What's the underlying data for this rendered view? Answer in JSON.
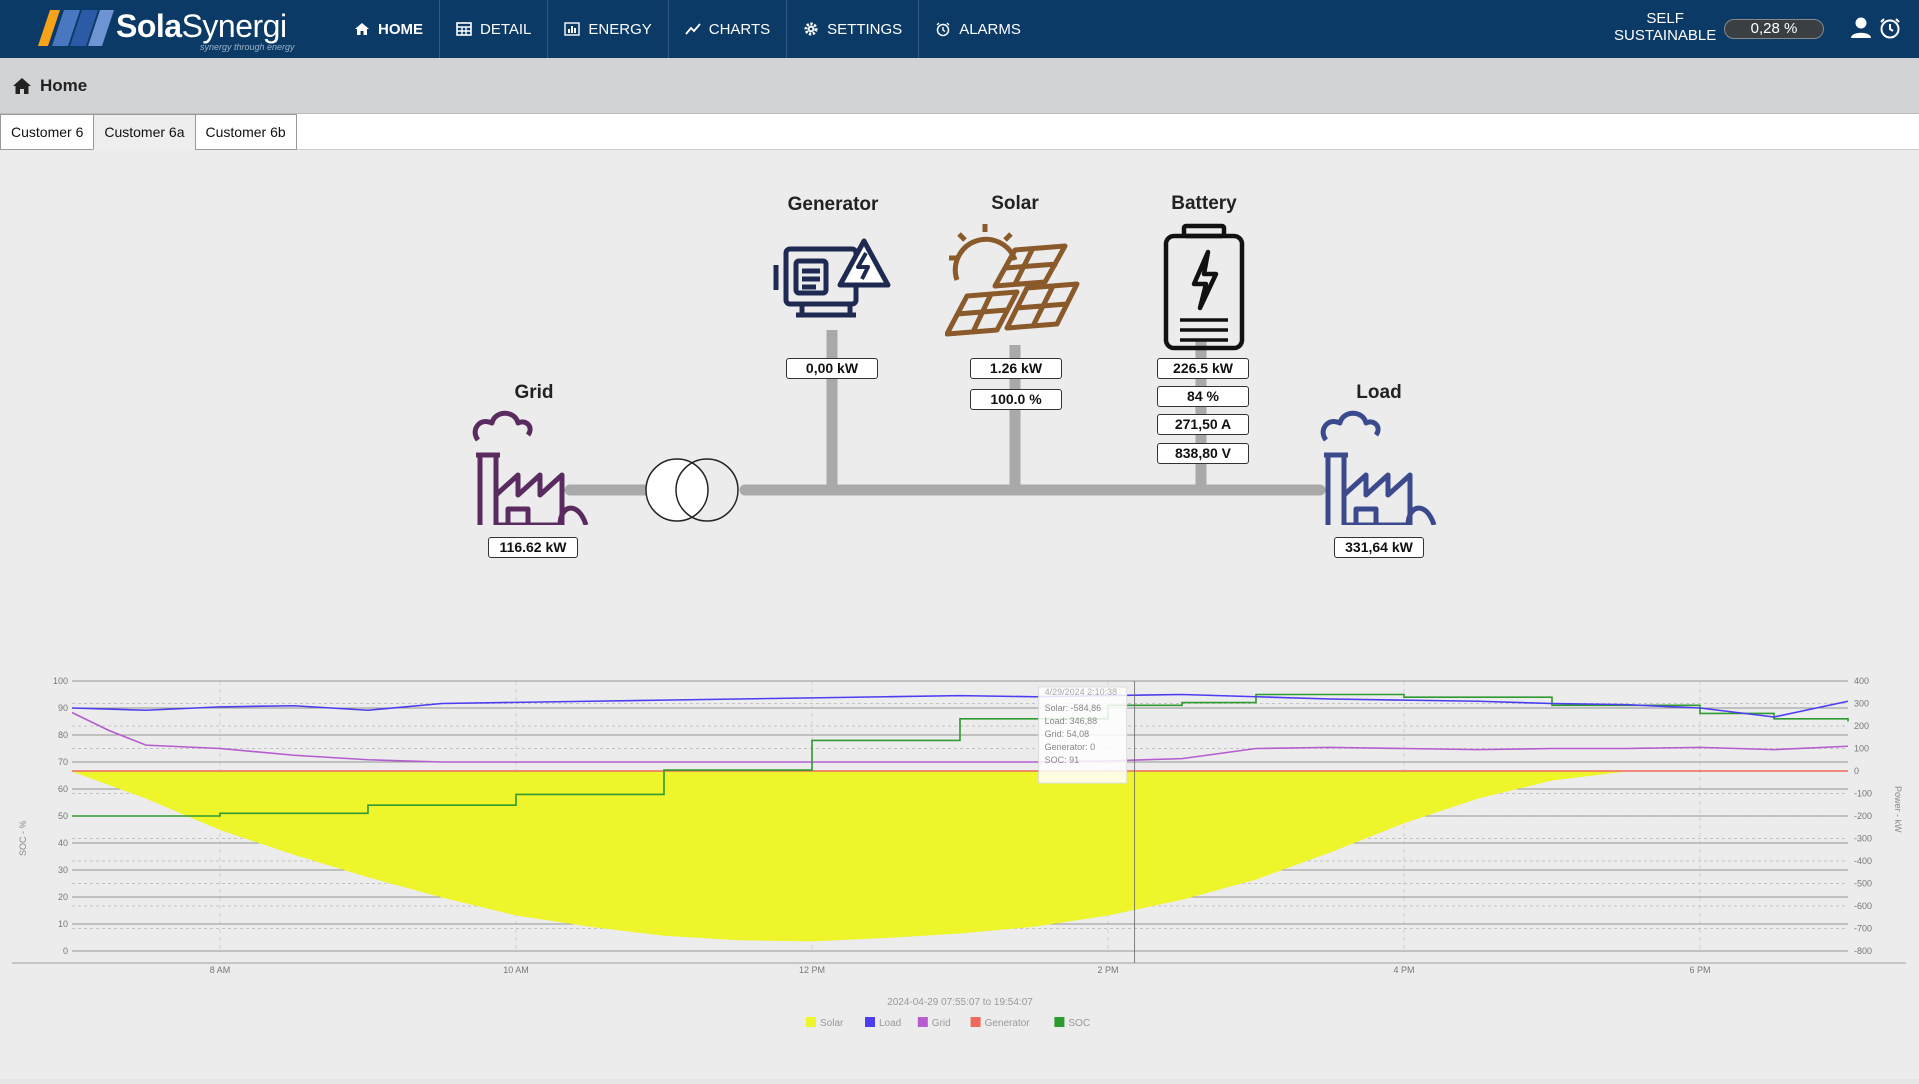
{
  "app": {
    "brand_bold": "Sola",
    "brand_light": "Synergi",
    "tagline": "synergy through energy"
  },
  "nav": [
    {
      "label": "HOME",
      "icon": "home-icon",
      "active": true
    },
    {
      "label": "DETAIL",
      "icon": "table-icon"
    },
    {
      "label": "ENERGY",
      "icon": "bar-chart-icon"
    },
    {
      "label": "CHARTS",
      "icon": "trend-icon"
    },
    {
      "label": "SETTINGS",
      "icon": "gear-icon"
    },
    {
      "label": "ALARMS",
      "icon": "alarm-clock-icon"
    }
  ],
  "self_sustainable": {
    "label_line1": "SELF",
    "label_line2": "SUSTAINABLE",
    "value": "0,28 %"
  },
  "breadcrumb": {
    "label": "Home"
  },
  "tabs": [
    {
      "label": "Customer 6"
    },
    {
      "label": "Customer 6a",
      "active": true
    },
    {
      "label": "Customer 6b"
    }
  ],
  "diagram": {
    "generator": {
      "label": "Generator",
      "power": "0,00 kW"
    },
    "solar": {
      "label": "Solar",
      "power": "1.26 kW",
      "percent": "100.0 %"
    },
    "battery": {
      "label": "Battery",
      "power": "226.5 kW",
      "soc": "84 %",
      "current": "271,50 A",
      "voltage": "838,80 V"
    },
    "grid": {
      "label": "Grid",
      "power": "116.62 kW"
    },
    "load": {
      "label": "Load",
      "power": "331,64 kW"
    }
  },
  "colors": {
    "solar": "#eef52b",
    "load": "#4b3df0",
    "grid": "#b45cd0",
    "generator": "#ee6a5c",
    "soc": "#2f9a2f",
    "nav_bg": "#0b3a66"
  },
  "chart_data": {
    "type": "area",
    "left_axis": {
      "label": "SOC - %",
      "ylim": [
        0,
        100
      ],
      "ticks": [
        "0",
        "10",
        "20",
        "30",
        "40",
        "50",
        "60",
        "70",
        "80",
        "90",
        "100"
      ]
    },
    "right_axis": {
      "label": "Power - kW",
      "ylim": [
        -800,
        400
      ],
      "ticks": [
        "-800",
        "-700",
        "-600",
        "-500",
        "-400",
        "-300",
        "-200",
        "-100",
        "0",
        "100",
        "200",
        "300",
        "400"
      ]
    },
    "x_ticks": [
      "8 AM",
      "10 AM",
      "12 PM",
      "2 PM",
      "4 PM",
      "6 PM"
    ],
    "x_range_hours": [
      7.0,
      19.0
    ],
    "range_text": {
      "from": "2024-04-29   07:55:07",
      "separator": "to",
      "to": "19:54:07"
    },
    "legend": [
      "Solar",
      "Load",
      "Grid",
      "Generator",
      "SOC"
    ],
    "tooltip": {
      "title": "4/29/2024 2:10:38",
      "lines": [
        "Solar: -584,86",
        "Load: 346,88",
        "Grid: 54,08",
        "Generator: 0",
        "SOC: 91"
      ]
    },
    "series": [
      {
        "name": "Solar",
        "axis": "right",
        "x": [
          7.0,
          7.5,
          8.0,
          8.5,
          9.0,
          9.5,
          10.0,
          10.5,
          11.0,
          11.5,
          12.0,
          12.5,
          13.0,
          13.5,
          14.0,
          14.5,
          15.0,
          15.5,
          16.0,
          16.5,
          17.0,
          17.5,
          18.0,
          18.5,
          19.0
        ],
        "values": [
          0,
          -120,
          -260,
          -370,
          -470,
          -560,
          -640,
          -690,
          -730,
          -750,
          -755,
          -740,
          -720,
          -690,
          -640,
          -570,
          -480,
          -360,
          -230,
          -120,
          -40,
          0,
          0,
          0,
          0
        ]
      },
      {
        "name": "Load",
        "axis": "right",
        "x": [
          7.0,
          7.5,
          8.0,
          8.5,
          9.0,
          9.5,
          10.0,
          10.5,
          11.0,
          11.5,
          12.0,
          12.5,
          13.0,
          13.5,
          14.0,
          14.5,
          15.0,
          15.5,
          16.0,
          16.5,
          17.0,
          17.5,
          18.0,
          18.5,
          19.0
        ],
        "values": [
          280,
          270,
          285,
          290,
          270,
          300,
          305,
          310,
          315,
          320,
          325,
          330,
          335,
          330,
          335,
          340,
          330,
          320,
          315,
          310,
          300,
          295,
          280,
          240,
          310
        ]
      },
      {
        "name": "Grid",
        "axis": "right",
        "x": [
          7.0,
          7.25,
          7.5,
          8.0,
          8.5,
          9.0,
          9.5,
          10.0,
          10.5,
          11.0,
          11.5,
          12.0,
          12.5,
          13.0,
          13.5,
          14.0,
          14.5,
          15.0,
          15.5,
          16.0,
          16.5,
          17.0,
          17.5,
          18.0,
          18.5,
          19.0
        ],
        "values": [
          260,
          180,
          115,
          100,
          70,
          50,
          40,
          40,
          40,
          40,
          40,
          40,
          40,
          40,
          40,
          45,
          55,
          100,
          105,
          100,
          95,
          100,
          100,
          105,
          95,
          110
        ]
      },
      {
        "name": "Generator",
        "axis": "right",
        "x": [
          7.0,
          19.0
        ],
        "values": [
          0,
          0
        ]
      },
      {
        "name": "SOC",
        "axis": "left",
        "x": [
          7.0,
          8.0,
          9.0,
          10.0,
          11.0,
          12.0,
          13.0,
          14.0,
          14.5,
          15.0,
          16.0,
          17.0,
          18.0,
          18.5,
          19.0
        ],
        "values": [
          50,
          51,
          54,
          58,
          67,
          78,
          86,
          91,
          92,
          95,
          94,
          91,
          88,
          86,
          85
        ]
      }
    ]
  }
}
